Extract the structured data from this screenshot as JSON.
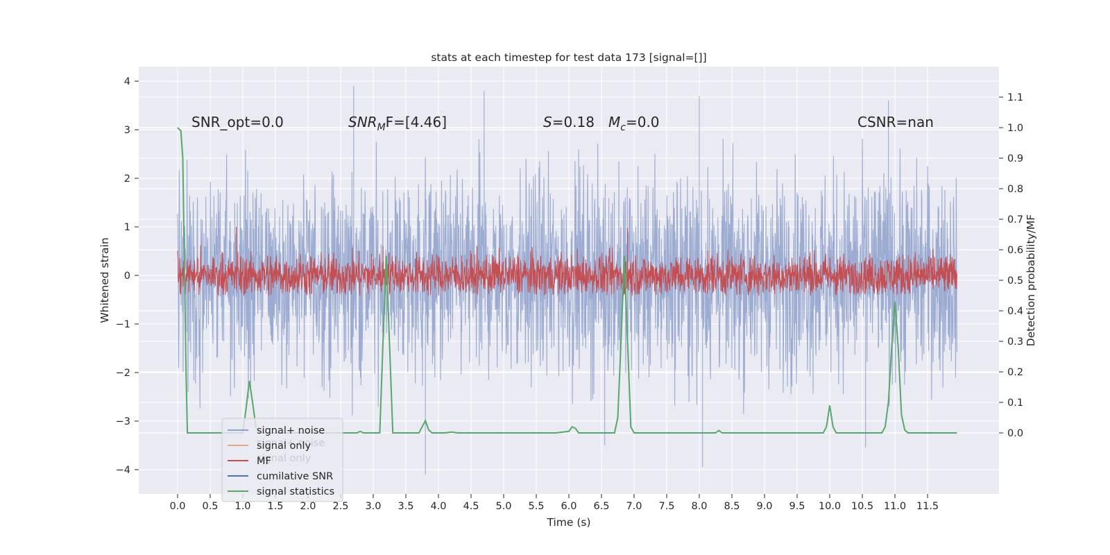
{
  "chart_data": {
    "type": "line",
    "title": "stats at each timestep for test data 173 [signal=[]]",
    "xlabel": "Time (s)",
    "ylabel": "Whitened strain",
    "y2label": "Detection probability/MF",
    "xlim": [
      -0.6,
      12.6
    ],
    "ylim": [
      -4.45,
      4.3
    ],
    "y2lim": [
      -0.19,
      1.2
    ],
    "xticks": [
      "0.0",
      "0.5",
      "1.0",
      "1.5",
      "2.0",
      "2.5",
      "3.0",
      "3.5",
      "4.0",
      "4.5",
      "5.0",
      "5.5",
      "6.0",
      "6.5",
      "7.0",
      "7.5",
      "8.0",
      "8.5",
      "9.0",
      "9.5",
      "10.0",
      "10.5",
      "11.0",
      "11.5"
    ],
    "yticks": [
      "−4",
      "−3",
      "−2",
      "−1",
      "0",
      "1",
      "2",
      "3",
      "4"
    ],
    "y2ticks": [
      "0.0",
      "0.1",
      "0.2",
      "0.3",
      "0.4",
      "0.5",
      "0.6",
      "0.7",
      "0.8",
      "0.9",
      "1.0",
      "1.1"
    ],
    "grid": true,
    "annotations": {
      "snr_opt": "SNR_opt=0.0",
      "snr_mf_label": "SNR",
      "snr_mf_sub": "M",
      "snr_mf_rest": "F=[4.46]",
      "s_label": "S",
      "s_rest": "=0.18",
      "mc_label": "M",
      "mc_sub": "c",
      "mc_rest": "=0.0",
      "csnr": "CSNR=nan"
    },
    "legend": {
      "placement": "lower-left",
      "entries": [
        {
          "label": "signal+ noise",
          "color": "#8da0cb"
        },
        {
          "label": "signal only",
          "color": "#e0a98a"
        },
        {
          "label": "MF",
          "color": "#c44e52"
        },
        {
          "label": "cumilative SNR",
          "color": "#4c72b0"
        },
        {
          "label": "signal statistics",
          "color": "#55a868"
        }
      ],
      "ghost_labels": [
        "signal+ noise",
        "signal only"
      ]
    },
    "series": [
      {
        "name": "signal+ noise",
        "color": "#8da0cb",
        "style": "dense noise band",
        "x_range": [
          0.0,
          11.95
        ],
        "typical_range": [
          -1.8,
          1.8
        ],
        "spikes": [
          [
            2.7,
            3.9
          ],
          [
            4.7,
            3.8
          ],
          [
            8.0,
            3.7
          ],
          [
            10.9,
            3.6
          ],
          [
            3.8,
            -4.1
          ],
          [
            8.05,
            -3.95
          ],
          [
            10.55,
            -3.55
          ],
          [
            6.55,
            -3.5
          ]
        ]
      },
      {
        "name": "MF",
        "color": "#c44e52",
        "style": "dense noise band",
        "x_range": [
          0.0,
          11.95
        ],
        "typical_range": [
          -0.4,
          0.55
        ],
        "spikes": [
          [
            0.9,
            1.0
          ],
          [
            6.9,
            0.98
          ],
          [
            3.15,
            0.6
          ]
        ]
      },
      {
        "name": "signal statistics",
        "color": "#55a868",
        "axis": "right",
        "x": [
          0.0,
          0.05,
          0.08,
          0.1,
          0.13,
          0.15,
          0.2,
          0.3,
          0.5,
          0.8,
          1.0,
          1.05,
          1.1,
          1.15,
          1.2,
          1.25,
          1.3,
          1.5,
          2.0,
          2.5,
          2.75,
          2.8,
          2.85,
          2.9,
          3.0,
          3.1,
          3.15,
          3.2,
          3.3,
          3.5,
          3.7,
          3.75,
          3.8,
          3.85,
          3.9,
          4.0,
          4.1,
          4.2,
          4.3,
          5.0,
          5.5,
          5.8,
          6.0,
          6.05,
          6.1,
          6.15,
          6.2,
          6.5,
          6.7,
          6.75,
          6.8,
          6.85,
          6.9,
          6.95,
          7.0,
          7.05,
          7.5,
          8.0,
          8.25,
          8.3,
          8.35,
          8.4,
          9.0,
          9.5,
          9.9,
          9.95,
          10.0,
          10.05,
          10.1,
          10.5,
          10.8,
          10.85,
          10.9,
          10.95,
          11.0,
          11.05,
          11.1,
          11.15,
          11.2,
          11.3,
          11.5,
          11.95
        ],
        "values": [
          1.0,
          0.99,
          0.9,
          0.6,
          0.2,
          0.0,
          0.0,
          0.0,
          0.0,
          0.0,
          0.0,
          0.08,
          0.17,
          0.1,
          0.02,
          0.0,
          0.0,
          0.0,
          0.0,
          0.0,
          0.0,
          0.005,
          0.0,
          0.0,
          0.0,
          0.0,
          0.3,
          0.58,
          0.0,
          0.0,
          0.0,
          0.02,
          0.04,
          0.01,
          0.0,
          0.0,
          0.0,
          0.003,
          0.0,
          0.0,
          0.0,
          0.0,
          0.005,
          0.02,
          0.015,
          0.0,
          0.0,
          0.0,
          0.0,
          0.05,
          0.3,
          0.58,
          0.3,
          0.02,
          0.0,
          0.0,
          0.0,
          0.0,
          0.0,
          0.008,
          0.0,
          0.0,
          0.0,
          0.0,
          0.0,
          0.02,
          0.09,
          0.02,
          0.0,
          0.0,
          0.0,
          0.02,
          0.1,
          0.28,
          0.43,
          0.28,
          0.06,
          0.01,
          0.0,
          0.0,
          0.0,
          0.0
        ]
      }
    ]
  }
}
